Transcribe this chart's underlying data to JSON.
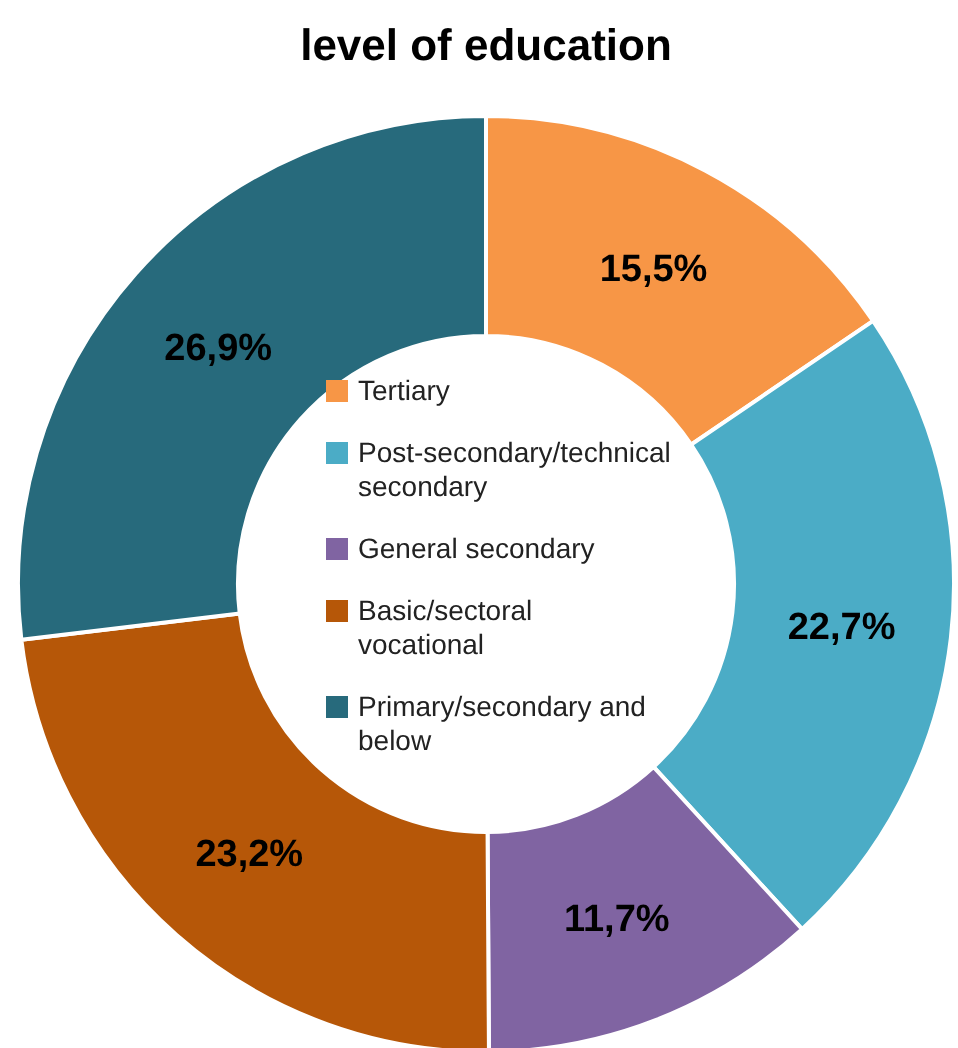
{
  "chart_data": {
    "type": "donut",
    "title": "level of education",
    "categories": [
      "Tertiary",
      "Post-secondary/technical secondary",
      "General secondary",
      "Basic/sectoral vocational",
      "Primary/secondary and below"
    ],
    "values": [
      15.5,
      22.7,
      11.7,
      23.2,
      26.9
    ],
    "colors": [
      "#f79646",
      "#4bacc6",
      "#8064a2",
      "#b65708",
      "#276a7c"
    ],
    "value_labels": [
      "15,5%",
      "22,7%",
      "11,7%",
      "23,2%",
      "26,9%"
    ],
    "legend": "center"
  }
}
